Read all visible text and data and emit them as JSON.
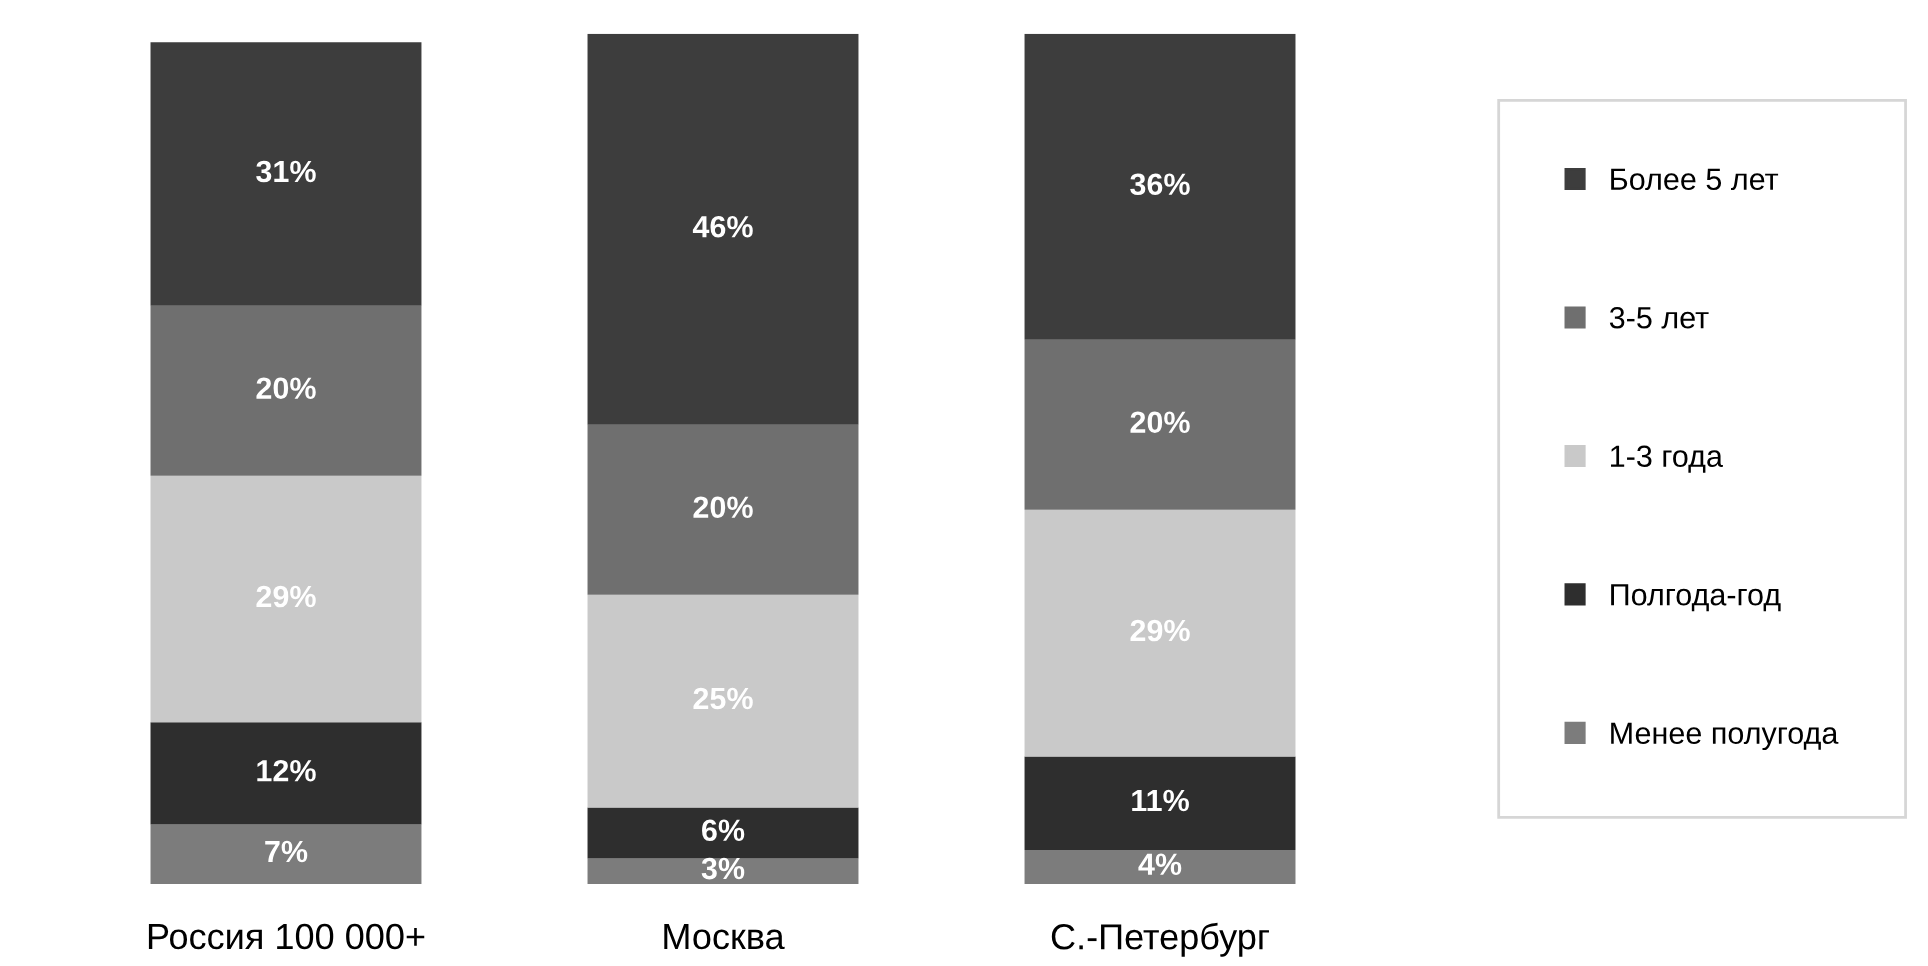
{
  "chart_data": {
    "type": "bar",
    "stacked": true,
    "categories": [
      "Россия 100 000+",
      "Москва",
      "С.-Петербург"
    ],
    "series": [
      {
        "name": "Менее полугода",
        "color": "#7c7c7c",
        "values": [
          7,
          3,
          4
        ],
        "value_labels": [
          "7%",
          "3%",
          "4%"
        ]
      },
      {
        "name": "Полгода-год",
        "color": "#2e2e2e",
        "values": [
          12,
          6,
          11
        ],
        "value_labels": [
          "12%",
          "6%",
          "11%"
        ]
      },
      {
        "name": "1-3 года",
        "color": "#c9c9c9",
        "values": [
          29,
          25,
          29
        ],
        "value_labels": [
          "29%",
          "25%",
          "29%"
        ]
      },
      {
        "name": "3-5 лет",
        "color": "#6f6f6f",
        "values": [
          20,
          20,
          20
        ],
        "value_labels": [
          "20%",
          "20%",
          "20%"
        ]
      },
      {
        "name": "Более 5 лет",
        "color": "#3d3d3d",
        "values": [
          31,
          46,
          36
        ],
        "value_labels": [
          "31%",
          "46%",
          "36%"
        ]
      }
    ],
    "legend": "right"
  }
}
